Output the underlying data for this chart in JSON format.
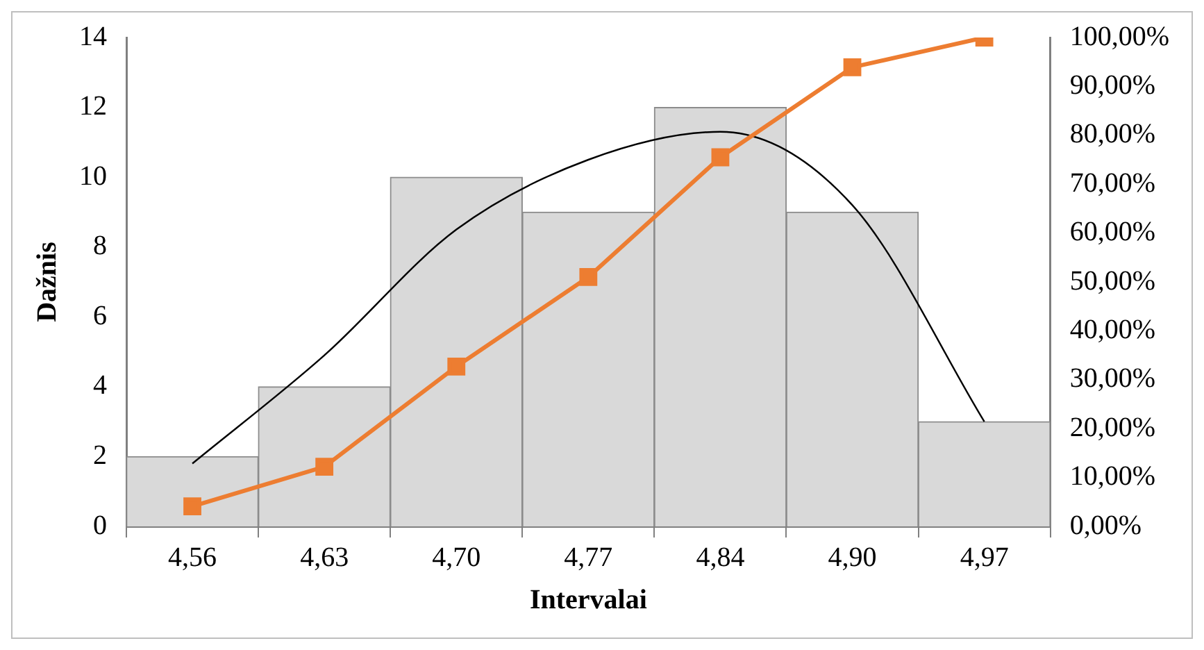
{
  "chart_data": {
    "type": "bar",
    "xlabel": "Intervalai",
    "ylabel": "Dažnis",
    "categories": [
      "4,56",
      "4,63",
      "4,70",
      "4,77",
      "4,84",
      "4,90",
      "4,97"
    ],
    "series": [
      {
        "color": "#d9d9d9",
        "values": [
          2,
          4,
          10,
          9,
          12,
          9,
          3
        ]
      },
      {
        "type": "line",
        "color": "#000000",
        "marker": "none",
        "values": [
          1.8,
          4.9,
          8.5,
          10.5,
          11.3,
          9.2,
          3.0
        ]
      },
      {
        "type": "line",
        "axis": "y2",
        "color": "#ed7d31",
        "marker": "square",
        "values": [
          4.1,
          12.2,
          32.7,
          51.0,
          75.5,
          93.9,
          100
        ]
      }
    ],
    "ylim": [
      0,
      14
    ],
    "yticks": [
      0,
      2,
      4,
      6,
      8,
      10,
      12,
      14
    ],
    "y2lim": [
      0,
      100
    ],
    "y2ticks": [
      {
        "value": 0,
        "label": "0,00%"
      },
      {
        "value": 10,
        "label": "10,00%"
      },
      {
        "value": 20,
        "label": "20,00%"
      },
      {
        "value": 30,
        "label": "30,00%"
      },
      {
        "value": 40,
        "label": "40,00%"
      },
      {
        "value": 50,
        "label": "50,00%"
      },
      {
        "value": 60,
        "label": "60,00%"
      },
      {
        "value": 70,
        "label": "70,00%"
      },
      {
        "value": 80,
        "label": "80,00%"
      },
      {
        "value": 90,
        "label": "90,00%"
      },
      {
        "value": 100,
        "label": "100,00%"
      }
    ],
    "grid": false,
    "legend": false
  }
}
